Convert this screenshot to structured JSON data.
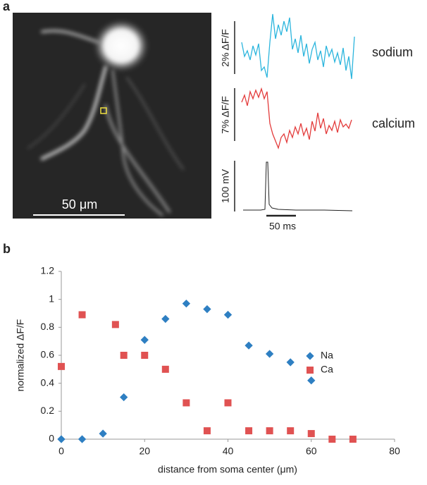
{
  "figure": {
    "panel_a": {
      "label": "a",
      "scale_bar": "50 μm",
      "traces": [
        {
          "scale": "2% ΔF/F",
          "name": "sodium"
        },
        {
          "scale": "7% ΔF/F",
          "name": "calcium"
        },
        {
          "scale": "100 mV"
        }
      ],
      "time_bar": "50 ms"
    },
    "panel_b": {
      "label": "b"
    }
  },
  "chart_data": {
    "type": "scatter",
    "xlabel": "distance from soma center (μm)",
    "ylabel": "normalized ΔF/F",
    "xlim": [
      0,
      80
    ],
    "ylim": [
      0,
      1.2
    ],
    "xticks": [
      0,
      20,
      40,
      60,
      80
    ],
    "yticks": [
      0,
      0.2,
      0.4,
      0.6,
      0.8,
      1,
      1.2
    ],
    "legend": "right",
    "series": [
      {
        "name": "Na",
        "color": "#2e7fc2",
        "marker": "diamond",
        "x": [
          0,
          5,
          10,
          15,
          20,
          25,
          30,
          35,
          40,
          45,
          50,
          55,
          60
        ],
        "values": [
          0,
          0,
          0.04,
          0.3,
          0.71,
          0.86,
          0.97,
          0.93,
          0.89,
          0.67,
          0.61,
          0.55,
          0.42
        ]
      },
      {
        "name": "Ca",
        "color": "#e05252",
        "marker": "square",
        "x": [
          0,
          5,
          13,
          15,
          20,
          25,
          30,
          35,
          40,
          45,
          50,
          55,
          60,
          65,
          70
        ],
        "values": [
          0.52,
          0.89,
          0.82,
          0.6,
          0.6,
          0.5,
          0.26,
          0.06,
          0.26,
          0.06,
          0.06,
          0.06,
          0.04,
          0,
          0
        ]
      }
    ]
  }
}
